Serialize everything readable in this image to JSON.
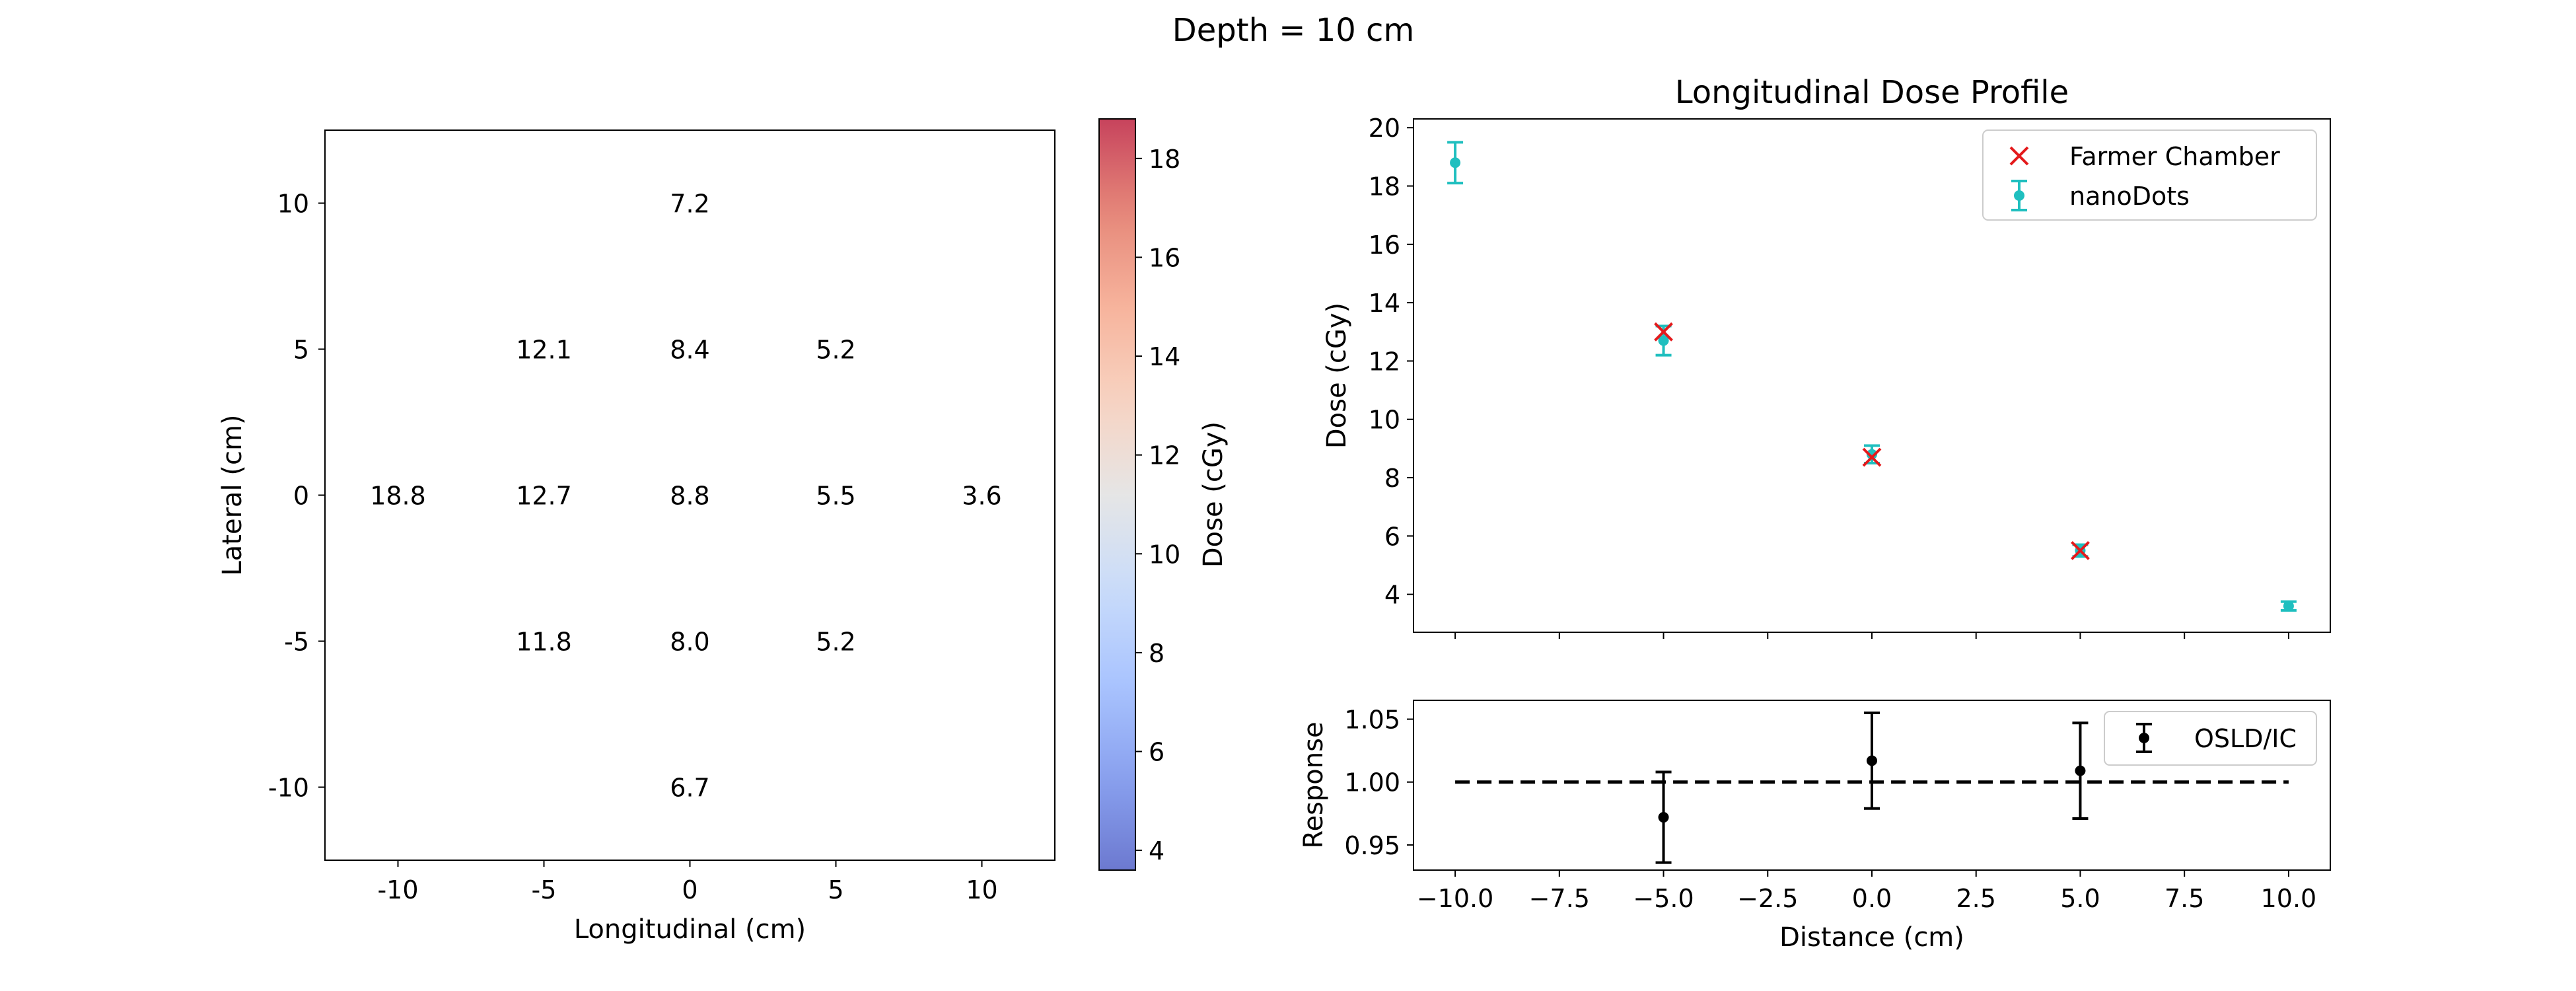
{
  "suptitle": "Depth = 10 cm",
  "chart_data": [
    {
      "type": "heatmap",
      "xlabel": "Longitudinal (cm)",
      "ylabel": "Lateral (cm)",
      "x_ticks": [
        "-10",
        "-5",
        "0",
        "5",
        "10"
      ],
      "y_ticks": [
        "-10",
        "-5",
        "0",
        "5",
        "10"
      ],
      "x_values": [
        -10,
        -5,
        0,
        5,
        10
      ],
      "y_values": [
        -10,
        -5,
        0,
        5,
        10
      ],
      "xlim": [
        -12.5,
        12.5
      ],
      "ylim": [
        12.5,
        -12.5
      ],
      "cells": [
        {
          "x": 0,
          "y": -10,
          "value": 6.7,
          "label": "6.7"
        },
        {
          "x": -5,
          "y": -5,
          "value": 11.8,
          "label": "11.8"
        },
        {
          "x": 0,
          "y": -5,
          "value": 8.0,
          "label": "8.0"
        },
        {
          "x": 5,
          "y": -5,
          "value": 5.2,
          "label": "5.2"
        },
        {
          "x": -10,
          "y": 0,
          "value": 18.8,
          "label": "18.8"
        },
        {
          "x": -5,
          "y": 0,
          "value": 12.7,
          "label": "12.7"
        },
        {
          "x": 0,
          "y": 0,
          "value": 8.8,
          "label": "8.8"
        },
        {
          "x": 5,
          "y": 0,
          "value": 5.5,
          "label": "5.5"
        },
        {
          "x": 10,
          "y": 0,
          "value": 3.6,
          "label": "3.6"
        },
        {
          "x": -5,
          "y": 5,
          "value": 12.1,
          "label": "12.1"
        },
        {
          "x": 0,
          "y": 5,
          "value": 8.4,
          "label": "8.4"
        },
        {
          "x": 5,
          "y": 5,
          "value": 5.2,
          "label": "5.2"
        },
        {
          "x": 0,
          "y": 10,
          "value": 7.2,
          "label": "7.2"
        }
      ],
      "colormap": "coolwarm",
      "alpha": 0.75,
      "colorbar": {
        "label": "Dose (cGy)",
        "range": [
          3.6,
          18.8
        ],
        "ticks": [
          "4",
          "6",
          "8",
          "10",
          "12",
          "14",
          "16",
          "18"
        ],
        "tick_values": [
          4,
          6,
          8,
          10,
          12,
          14,
          16,
          18
        ]
      }
    },
    {
      "type": "scatter",
      "title": "Longitudinal Dose Profile",
      "xlabel": "",
      "ylabel": "Dose (cGy)",
      "xlim": [
        -11,
        11
      ],
      "ylim": [
        2.7,
        20.3
      ],
      "x_ticks": [
        -10,
        -7.5,
        -5,
        -2.5,
        0,
        2.5,
        5,
        7.5,
        10
      ],
      "y_ticks": [
        "4",
        "6",
        "8",
        "10",
        "12",
        "14",
        "16",
        "18",
        "20"
      ],
      "y_tick_values": [
        4,
        6,
        8,
        10,
        12,
        14,
        16,
        18,
        20
      ],
      "legend_position": "top-right",
      "series": [
        {
          "name": "Farmer Chamber",
          "marker": "x",
          "color": "#e41a1c",
          "x": [
            -5,
            0,
            5
          ],
          "y": [
            13.0,
            8.7,
            5.5
          ]
        },
        {
          "name": "nanoDots",
          "marker": "errorbar-dot",
          "color": "#1fbfbf",
          "x": [
            -10,
            -5,
            0,
            5,
            10
          ],
          "y": [
            18.8,
            12.7,
            8.8,
            5.5,
            3.6
          ],
          "yerr": [
            0.7,
            0.5,
            0.3,
            0.2,
            0.15
          ]
        }
      ]
    },
    {
      "type": "scatter",
      "title": "",
      "xlabel": "Distance (cm)",
      "ylabel": "Response",
      "xlim": [
        -11,
        11
      ],
      "ylim": [
        0.93,
        1.065
      ],
      "x_ticks": [
        "−10.0",
        "−7.5",
        "−5.0",
        "−2.5",
        "0.0",
        "2.5",
        "5.0",
        "7.5",
        "10.0"
      ],
      "x_tick_values": [
        -10,
        -7.5,
        -5,
        -2.5,
        0,
        2.5,
        5,
        7.5,
        10
      ],
      "y_ticks": [
        "0.95",
        "1.00",
        "1.05"
      ],
      "y_tick_values": [
        0.95,
        1.0,
        1.05
      ],
      "legend_position": "top-right",
      "reference_line": {
        "y": 1.0,
        "x_range": [
          -10,
          10
        ],
        "style": "dashed"
      },
      "series": [
        {
          "name": "OSLD/IC",
          "marker": "errorbar-dot",
          "color": "#000000",
          "x": [
            -5,
            0,
            5
          ],
          "y": [
            0.972,
            1.017,
            1.009
          ],
          "yerr": [
            0.036,
            0.038,
            0.038
          ]
        }
      ]
    }
  ]
}
